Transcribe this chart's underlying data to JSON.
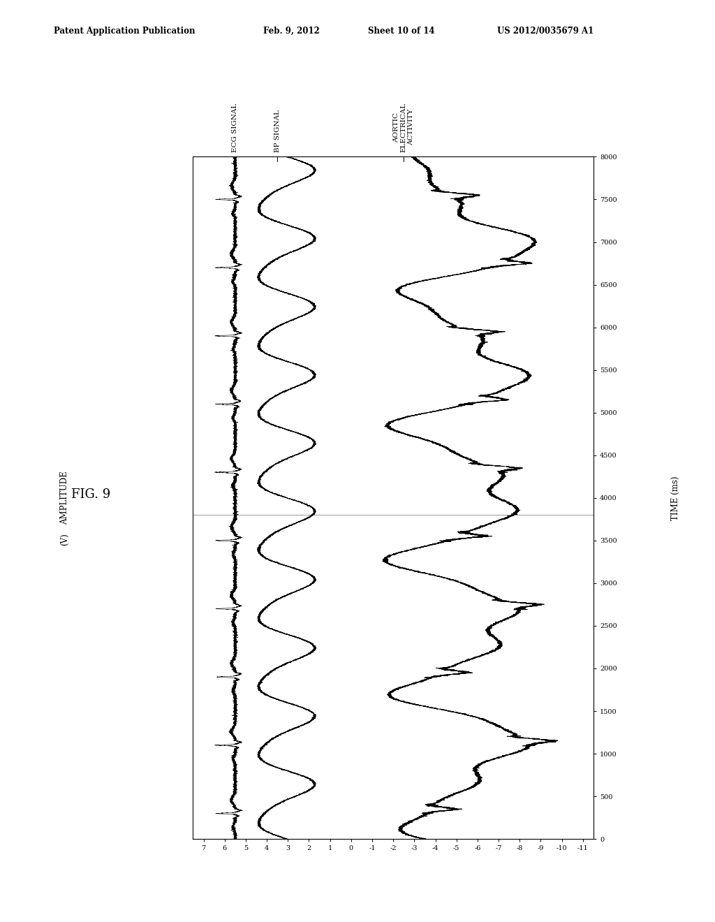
{
  "header_left": "Patent Application Publication",
  "header_mid1": "Feb. 9, 2012",
  "header_mid2": "Sheet 10 of 14",
  "header_right": "US 2012/0035679 A1",
  "fig_label": "FIG. 9",
  "amplitude_label": "AMPLITUDE",
  "amplitude_unit": "(V)",
  "time_label": "TIME (ms)",
  "x_ticks": [
    7,
    6,
    5,
    4,
    3,
    2,
    1,
    0,
    -1,
    -2,
    -3,
    -4,
    -5,
    -6,
    -7,
    -8,
    -9,
    -10,
    -11
  ],
  "y_ticks": [
    0,
    500,
    1000,
    1500,
    2000,
    2500,
    3000,
    3500,
    4000,
    4500,
    5000,
    5500,
    6000,
    6500,
    7000,
    7500,
    8000
  ],
  "ylim": [
    0,
    8000
  ],
  "xlim_left": 7.5,
  "xlim_right": -11.5,
  "hline_t": 3800,
  "ecg_label": "ECG SIGNAL",
  "bp_label": "BP SIGNAL",
  "aortic_label": "AORTIC\nELECTRICAL\nACTIVITY",
  "ecg_amp": 5.5,
  "bp_amp": 3.2,
  "aortic_amp": -4.8,
  "background": "#ffffff",
  "line_color": "#000000"
}
